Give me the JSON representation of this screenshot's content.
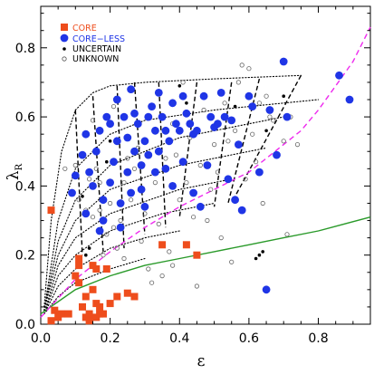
{
  "chart_data": {
    "type": "scatter",
    "xlabel": "ε",
    "ylabel_main": "λ",
    "ylabel_sub": "R",
    "xlim": [
      0,
      0.95
    ],
    "ylim": [
      0,
      0.92
    ],
    "x_ticks": [
      0.0,
      0.2,
      0.4,
      0.6,
      0.8
    ],
    "y_ticks": [
      0.0,
      0.2,
      0.4,
      0.6,
      0.8
    ],
    "x_tick_labels": [
      "0.0",
      "0.2",
      "0.4",
      "0.6",
      "0.8"
    ],
    "y_tick_labels": [
      "0.0",
      "0.2",
      "0.4",
      "0.6",
      "0.8"
    ],
    "legend_position": "top-left",
    "colors": {
      "core": "#ee4d1c",
      "coreless": "#1f35e6",
      "uncertain": "#000000",
      "unknown": "#666666",
      "green_line": "#2a9a2a",
      "magenta_line": "#ee2bee",
      "model_lines": "#000000"
    },
    "series": [
      {
        "name": "CORE",
        "marker": "square",
        "points": [
          [
            0.03,
            0.33
          ],
          [
            0.03,
            0.01
          ],
          [
            0.04,
            0.04
          ],
          [
            0.05,
            0.02
          ],
          [
            0.06,
            0.03
          ],
          [
            0.08,
            0.03
          ],
          [
            0.1,
            0.14
          ],
          [
            0.11,
            0.17
          ],
          [
            0.11,
            0.12
          ],
          [
            0.11,
            0.19
          ],
          [
            0.12,
            0.05
          ],
          [
            0.13,
            0.02
          ],
          [
            0.13,
            0.08
          ],
          [
            0.14,
            0.01
          ],
          [
            0.14,
            0.03
          ],
          [
            0.15,
            0.17
          ],
          [
            0.15,
            0.1
          ],
          [
            0.16,
            0.06
          ],
          [
            0.16,
            0.02
          ],
          [
            0.16,
            0.16
          ],
          [
            0.17,
            0.05
          ],
          [
            0.17,
            0.03
          ],
          [
            0.18,
            0.03
          ],
          [
            0.19,
            0.16
          ],
          [
            0.2,
            0.06
          ],
          [
            0.22,
            0.08
          ],
          [
            0.25,
            0.09
          ],
          [
            0.27,
            0.08
          ],
          [
            0.35,
            0.23
          ],
          [
            0.42,
            0.23
          ],
          [
            0.45,
            0.2
          ]
        ]
      },
      {
        "name": "CORE−LESS",
        "marker": "filled-circle",
        "points": [
          [
            0.09,
            0.38
          ],
          [
            0.1,
            0.43
          ],
          [
            0.12,
            0.49
          ],
          [
            0.13,
            0.32
          ],
          [
            0.13,
            0.55
          ],
          [
            0.14,
            0.44
          ],
          [
            0.15,
            0.4
          ],
          [
            0.16,
            0.5
          ],
          [
            0.17,
            0.56
          ],
          [
            0.17,
            0.27
          ],
          [
            0.18,
            0.3
          ],
          [
            0.18,
            0.36
          ],
          [
            0.19,
            0.6
          ],
          [
            0.2,
            0.58
          ],
          [
            0.2,
            0.41
          ],
          [
            0.21,
            0.47
          ],
          [
            0.22,
            0.65
          ],
          [
            0.22,
            0.53
          ],
          [
            0.23,
            0.35
          ],
          [
            0.23,
            0.28
          ],
          [
            0.24,
            0.6
          ],
          [
            0.25,
            0.44
          ],
          [
            0.25,
            0.54
          ],
          [
            0.26,
            0.68
          ],
          [
            0.26,
            0.38
          ],
          [
            0.27,
            0.5
          ],
          [
            0.27,
            0.61
          ],
          [
            0.28,
            0.58
          ],
          [
            0.29,
            0.46
          ],
          [
            0.29,
            0.39
          ],
          [
            0.3,
            0.53
          ],
          [
            0.3,
            0.34
          ],
          [
            0.31,
            0.6
          ],
          [
            0.31,
            0.49
          ],
          [
            0.32,
            0.63
          ],
          [
            0.33,
            0.44
          ],
          [
            0.33,
            0.56
          ],
          [
            0.34,
            0.5
          ],
          [
            0.34,
            0.67
          ],
          [
            0.35,
            0.6
          ],
          [
            0.36,
            0.45
          ],
          [
            0.36,
            0.56
          ],
          [
            0.37,
            0.53
          ],
          [
            0.38,
            0.64
          ],
          [
            0.38,
            0.4
          ],
          [
            0.39,
            0.58
          ],
          [
            0.4,
            0.56
          ],
          [
            0.41,
            0.47
          ],
          [
            0.41,
            0.66
          ],
          [
            0.42,
            0.61
          ],
          [
            0.43,
            0.58
          ],
          [
            0.44,
            0.55
          ],
          [
            0.44,
            0.38
          ],
          [
            0.45,
            0.56
          ],
          [
            0.46,
            0.34
          ],
          [
            0.47,
            0.66
          ],
          [
            0.48,
            0.46
          ],
          [
            0.49,
            0.6
          ],
          [
            0.5,
            0.57
          ],
          [
            0.51,
            0.58
          ],
          [
            0.52,
            0.67
          ],
          [
            0.53,
            0.6
          ],
          [
            0.54,
            0.42
          ],
          [
            0.55,
            0.59
          ],
          [
            0.56,
            0.36
          ],
          [
            0.57,
            0.52
          ],
          [
            0.58,
            0.33
          ],
          [
            0.6,
            0.66
          ],
          [
            0.61,
            0.63
          ],
          [
            0.63,
            0.44
          ],
          [
            0.65,
            0.1
          ],
          [
            0.66,
            0.62
          ],
          [
            0.68,
            0.49
          ],
          [
            0.7,
            0.76
          ],
          [
            0.71,
            0.6
          ],
          [
            0.86,
            0.72
          ],
          [
            0.89,
            0.65
          ]
        ]
      },
      {
        "name": "UNCERTAIN",
        "marker": "small-dot",
        "points": [
          [
            0.12,
            0.37
          ],
          [
            0.13,
            0.2
          ],
          [
            0.14,
            0.22
          ],
          [
            0.19,
            0.47
          ],
          [
            0.2,
            0.53
          ],
          [
            0.25,
            0.54
          ],
          [
            0.4,
            0.69
          ],
          [
            0.42,
            0.64
          ],
          [
            0.49,
            0.6
          ],
          [
            0.56,
            0.63
          ],
          [
            0.62,
            0.19
          ],
          [
            0.63,
            0.2
          ],
          [
            0.64,
            0.21
          ],
          [
            0.65,
            0.56
          ],
          [
            0.7,
            0.66
          ]
        ]
      },
      {
        "name": "UNKNOWN",
        "marker": "open-circle",
        "points": [
          [
            0.07,
            0.45
          ],
          [
            0.1,
            0.46
          ],
          [
            0.11,
            0.36
          ],
          [
            0.13,
            0.33
          ],
          [
            0.14,
            0.42
          ],
          [
            0.15,
            0.31
          ],
          [
            0.15,
            0.59
          ],
          [
            0.16,
            0.45
          ],
          [
            0.17,
            0.41
          ],
          [
            0.17,
            0.33
          ],
          [
            0.18,
            0.2
          ],
          [
            0.19,
            0.26
          ],
          [
            0.2,
            0.35
          ],
          [
            0.21,
            0.28
          ],
          [
            0.21,
            0.63
          ],
          [
            0.22,
            0.22
          ],
          [
            0.23,
            0.3
          ],
          [
            0.24,
            0.41
          ],
          [
            0.24,
            0.19
          ],
          [
            0.25,
            0.48
          ],
          [
            0.26,
            0.36
          ],
          [
            0.27,
            0.45
          ],
          [
            0.28,
            0.51
          ],
          [
            0.29,
            0.24
          ],
          [
            0.3,
            0.32
          ],
          [
            0.31,
            0.16
          ],
          [
            0.32,
            0.12
          ],
          [
            0.33,
            0.41
          ],
          [
            0.34,
            0.29
          ],
          [
            0.35,
            0.14
          ],
          [
            0.36,
            0.48
          ],
          [
            0.37,
            0.21
          ],
          [
            0.38,
            0.17
          ],
          [
            0.38,
            0.58
          ],
          [
            0.39,
            0.49
          ],
          [
            0.4,
            0.36
          ],
          [
            0.41,
            0.7
          ],
          [
            0.42,
            0.41
          ],
          [
            0.43,
            0.54
          ],
          [
            0.44,
            0.31
          ],
          [
            0.45,
            0.11
          ],
          [
            0.46,
            0.46
          ],
          [
            0.47,
            0.62
          ],
          [
            0.48,
            0.3
          ],
          [
            0.49,
            0.39
          ],
          [
            0.5,
            0.52
          ],
          [
            0.51,
            0.44
          ],
          [
            0.52,
            0.25
          ],
          [
            0.53,
            0.64
          ],
          [
            0.54,
            0.53
          ],
          [
            0.55,
            0.18
          ],
          [
            0.56,
            0.56
          ],
          [
            0.57,
            0.7
          ],
          [
            0.58,
            0.75
          ],
          [
            0.59,
            0.42
          ],
          [
            0.6,
            0.74
          ],
          [
            0.61,
            0.55
          ],
          [
            0.62,
            0.47
          ],
          [
            0.63,
            0.64
          ],
          [
            0.64,
            0.35
          ],
          [
            0.65,
            0.66
          ],
          [
            0.66,
            0.6
          ],
          [
            0.67,
            0.59
          ],
          [
            0.7,
            0.53
          ],
          [
            0.71,
            0.26
          ],
          [
            0.72,
            0.6
          ],
          [
            0.74,
            0.52
          ]
        ]
      }
    ],
    "lines": [
      {
        "name": "green",
        "style": "solid",
        "x": [
          0.0,
          0.1,
          0.2,
          0.3,
          0.4,
          0.5,
          0.6,
          0.7,
          0.8,
          0.95
        ],
        "y": [
          0.03,
          0.1,
          0.14,
          0.17,
          0.19,
          0.21,
          0.23,
          0.25,
          0.27,
          0.31
        ]
      },
      {
        "name": "magenta",
        "style": "dashed",
        "x": [
          0.0,
          0.1,
          0.2,
          0.3,
          0.4,
          0.5,
          0.6,
          0.7,
          0.75,
          0.8,
          0.85,
          0.9,
          0.95
        ],
        "y": [
          0.02,
          0.13,
          0.21,
          0.28,
          0.34,
          0.39,
          0.44,
          0.52,
          0.56,
          0.62,
          0.69,
          0.76,
          0.86
        ]
      }
    ],
    "model_lines": {
      "dotted": [
        {
          "x": [
            0.01,
            0.03,
            0.06,
            0.1,
            0.15,
            0.2,
            0.3,
            0.5,
            0.75
          ],
          "y": [
            0.05,
            0.3,
            0.5,
            0.62,
            0.67,
            0.69,
            0.7,
            0.71,
            0.72
          ]
        },
        {
          "x": [
            0.01,
            0.05,
            0.1,
            0.2,
            0.3,
            0.5,
            0.7,
            0.8
          ],
          "y": [
            0.04,
            0.3,
            0.45,
            0.55,
            0.59,
            0.62,
            0.64,
            0.65
          ]
        },
        {
          "x": [
            0.01,
            0.05,
            0.1,
            0.2,
            0.4,
            0.6,
            0.7
          ],
          "y": [
            0.04,
            0.24,
            0.36,
            0.46,
            0.54,
            0.58,
            0.6
          ]
        },
        {
          "x": [
            0.01,
            0.05,
            0.1,
            0.2,
            0.4,
            0.6,
            0.65
          ],
          "y": [
            0.04,
            0.2,
            0.3,
            0.39,
            0.46,
            0.5,
            0.51
          ]
        },
        {
          "x": [
            0.01,
            0.05,
            0.1,
            0.2,
            0.4,
            0.55
          ],
          "y": [
            0.03,
            0.17,
            0.25,
            0.32,
            0.39,
            0.42
          ]
        },
        {
          "x": [
            0.01,
            0.05,
            0.1,
            0.2,
            0.35,
            0.5
          ],
          "y": [
            0.03,
            0.14,
            0.2,
            0.27,
            0.32,
            0.35
          ]
        },
        {
          "x": [
            0.01,
            0.05,
            0.1,
            0.2,
            0.3,
            0.4
          ],
          "y": [
            0.03,
            0.11,
            0.16,
            0.22,
            0.25,
            0.27
          ]
        },
        {
          "x": [
            0.01,
            0.05,
            0.1,
            0.2,
            0.3
          ],
          "y": [
            0.03,
            0.08,
            0.12,
            0.16,
            0.19
          ]
        }
      ],
      "dashed": [
        {
          "x": [
            0.1,
            0.12
          ],
          "y": [
            0.62,
            0.2
          ]
        },
        {
          "x": [
            0.15,
            0.18
          ],
          "y": [
            0.66,
            0.21
          ]
        },
        {
          "x": [
            0.22,
            0.24
          ],
          "y": [
            0.69,
            0.22
          ]
        },
        {
          "x": [
            0.27,
            0.3
          ],
          "y": [
            0.7,
            0.26
          ]
        },
        {
          "x": [
            0.34,
            0.36
          ],
          "y": [
            0.7,
            0.28
          ]
        },
        {
          "x": [
            0.45,
            0.4
          ],
          "y": [
            0.7,
            0.31
          ]
        },
        {
          "x": [
            0.55,
            0.5
          ],
          "y": [
            0.7,
            0.34
          ]
        },
        {
          "x": [
            0.63,
            0.54
          ],
          "y": [
            0.71,
            0.35
          ]
        },
        {
          "x": [
            0.75,
            0.56
          ],
          "y": [
            0.72,
            0.37
          ]
        }
      ]
    }
  }
}
